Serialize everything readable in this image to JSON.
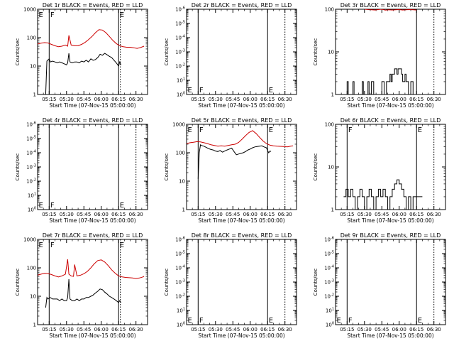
{
  "x_axis": {
    "start_minutes_after_0500": 5,
    "end_minutes_after_0500": 100,
    "ticks": [
      "05:15",
      "05:30",
      "05:45",
      "06:00",
      "06:15",
      "06:30"
    ],
    "tick_minutes": [
      15,
      30,
      45,
      60,
      75,
      90
    ],
    "label": "Start Time (07-Nov-15 05:00:00)"
  },
  "y_label": "Counts/sec",
  "series_colors": {
    "events": "#000000",
    "lld": "#cc0000"
  },
  "chart_data": [
    {
      "type": "line",
      "title": "Det 1r BLACK = Events, RED = LLD",
      "ylabel": "Counts/sec",
      "xlabel": "Start Time (07-Nov-15 05:00:00)",
      "yscale": "log",
      "ylim": [
        1,
        1000
      ],
      "yticks": [
        "1",
        "10",
        "100",
        "1000"
      ],
      "marks": [
        {
          "label": "E",
          "x": 5,
          "style": "solid",
          "pos": "top"
        },
        {
          "label": "F",
          "x": 15,
          "style": "solid",
          "pos": "top"
        },
        {
          "label": "E",
          "x": 75,
          "style": "solid",
          "pos": "top"
        },
        {
          "label": "",
          "x": 76.5,
          "style": "dotted",
          "pos": "top"
        }
      ],
      "series": [
        {
          "color": "#cc0000",
          "x": [
            5,
            8,
            11,
            14,
            17,
            20,
            23,
            26,
            29,
            31,
            32,
            34,
            37,
            40,
            43,
            46,
            49,
            52,
            55,
            58,
            61,
            64,
            67,
            70,
            73,
            76,
            79,
            82,
            85,
            88,
            91,
            94,
            97
          ],
          "y": [
            60,
            64,
            67,
            65,
            58,
            52,
            48,
            50,
            55,
            50,
            120,
            55,
            52,
            52,
            58,
            68,
            85,
            110,
            150,
            190,
            185,
            150,
            110,
            80,
            62,
            52,
            48,
            46,
            46,
            44,
            42,
            45,
            50
          ]
        },
        {
          "color": "#000000",
          "x": [
            12,
            13,
            15,
            16,
            18,
            20,
            22,
            24,
            26,
            28,
            30,
            31,
            32,
            33,
            35,
            37,
            39,
            41,
            43,
            45,
            47,
            49,
            51,
            53,
            55,
            57,
            59,
            61,
            63,
            65,
            67,
            69,
            71,
            73,
            75,
            76,
            77
          ],
          "y": [
            1,
            15,
            18,
            14,
            15,
            14,
            13,
            14,
            13,
            12,
            11,
            13,
            28,
            14,
            13,
            14,
            14,
            13,
            15,
            14,
            16,
            14,
            18,
            16,
            17,
            20,
            26,
            24,
            28,
            25,
            22,
            20,
            16,
            13,
            10,
            14,
            11
          ]
        }
      ]
    },
    {
      "type": "line",
      "title": "Det 2r BLACK = Events, RED = LLD",
      "ylabel": "Counts/sec",
      "xlabel": "Start Time (07-Nov-15 05:00:00)",
      "yscale": "log",
      "ylim": [
        1,
        1000000
      ],
      "yticks": [
        "10^0",
        "10^1",
        "10^-2",
        "10^-3",
        "10^-4",
        "10^-5",
        "10^-6"
      ],
      "marks": [
        {
          "label": "E",
          "x": 5,
          "style": "solid",
          "pos": "bottom"
        },
        {
          "label": "F",
          "x": 15,
          "style": "solid",
          "pos": "bottom"
        },
        {
          "label": "E",
          "x": 75,
          "style": "solid",
          "pos": "bottom"
        },
        {
          "label": "",
          "x": 90,
          "style": "dotted",
          "pos": "bottom"
        }
      ],
      "series": []
    },
    {
      "type": "line",
      "title": "Det 3r BLACK = Events, RED = LLD",
      "ylabel": "Counts/sec",
      "xlabel": "Start Time (07-Nov-15 05:00:00)",
      "yscale": "log",
      "ylim": [
        1,
        100
      ],
      "yticks": [
        "1",
        "10",
        "100"
      ],
      "marks": [
        {
          "label": "",
          "x": 5,
          "style": "solid",
          "pos": "top"
        },
        {
          "label": "",
          "x": 75,
          "style": "solid",
          "pos": "top"
        },
        {
          "label": "",
          "x": 90,
          "style": "dotted",
          "pos": "top"
        }
      ],
      "series": [
        {
          "color": "#cc0000",
          "x": [
            30,
            33,
            36,
            39,
            42,
            45,
            48,
            51,
            54,
            57,
            60,
            63,
            66,
            69,
            72,
            75
          ],
          "y": [
            100,
            98,
            97,
            96,
            98,
            100,
            95,
            97,
            96,
            97,
            98,
            96,
            97,
            98,
            97,
            96
          ]
        },
        {
          "color": "#000000",
          "x": [
            5,
            15,
            15,
            16,
            16,
            20,
            20,
            21,
            21,
            28,
            28,
            29,
            29,
            33,
            33,
            34,
            34,
            36,
            36,
            38,
            38,
            45,
            45,
            47,
            47,
            49,
            49,
            52,
            52,
            53,
            53,
            54,
            54,
            56,
            56,
            58,
            58,
            59,
            59,
            62,
            62,
            63,
            63,
            65,
            65,
            66,
            66,
            68,
            68,
            70,
            70,
            72,
            72,
            75,
            75,
            80
          ],
          "y": [
            1,
            1,
            2,
            2,
            1,
            1,
            2,
            2,
            1,
            1,
            2,
            2,
            1,
            1,
            2,
            2,
            1,
            1,
            2,
            2,
            1,
            1,
            2,
            2,
            1,
            1,
            2,
            2,
            3,
            3,
            2,
            2,
            3,
            3,
            4,
            4,
            3,
            3,
            4,
            4,
            3,
            3,
            2,
            2,
            3,
            3,
            2,
            2,
            1,
            1,
            2,
            2,
            1,
            1,
            1,
            1
          ]
        }
      ]
    },
    {
      "type": "line",
      "title": "Det 4r BLACK = Events, RED = LLD",
      "ylabel": "Counts/sec",
      "xlabel": "Start Time (07-Nov-15 05:00:00)",
      "yscale": "log",
      "ylim": [
        1,
        1000000
      ],
      "yticks": [
        "10^0",
        "10^1",
        "10^-2",
        "10^-3",
        "10^-4",
        "10^-5",
        "10^-6"
      ],
      "marks": [
        {
          "label": "E",
          "x": 5,
          "style": "solid",
          "pos": "bottom"
        },
        {
          "label": "F",
          "x": 15,
          "style": "solid",
          "pos": "bottom"
        },
        {
          "label": "E",
          "x": 75,
          "style": "solid",
          "pos": "bottom"
        },
        {
          "label": "",
          "x": 90,
          "style": "dotted",
          "pos": "bottom"
        }
      ],
      "series": []
    },
    {
      "type": "line",
      "title": "Det 5r BLACK = Events, RED = LLD",
      "ylabel": "Counts/sec",
      "xlabel": "Start Time (07-Nov-15 05:00:00)",
      "yscale": "log",
      "ylim": [
        1,
        1000
      ],
      "yticks": [
        "1",
        "10",
        "100",
        "1000"
      ],
      "marks": [
        {
          "label": "E",
          "x": 5,
          "style": "solid",
          "pos": "top"
        },
        {
          "label": "F",
          "x": 15,
          "style": "solid",
          "pos": "top"
        },
        {
          "label": "E",
          "x": 75,
          "style": "solid",
          "pos": "top"
        },
        {
          "label": "",
          "x": 90,
          "style": "dotted",
          "pos": "top"
        }
      ],
      "series": [
        {
          "color": "#cc0000",
          "x": [
            5,
            8,
            11,
            14,
            17,
            20,
            23,
            26,
            29,
            32,
            35,
            38,
            41,
            44,
            47,
            50,
            53,
            56,
            59,
            62,
            65,
            68,
            71,
            74,
            77,
            80,
            83,
            86,
            89,
            92,
            95,
            97
          ],
          "y": [
            210,
            225,
            235,
            245,
            240,
            225,
            210,
            190,
            180,
            170,
            175,
            170,
            180,
            190,
            200,
            230,
            300,
            400,
            520,
            600,
            480,
            350,
            260,
            210,
            185,
            175,
            170,
            168,
            165,
            160,
            170,
            175
          ]
        },
        {
          "color": "#000000",
          "x": [
            15,
            16,
            17,
            18,
            20,
            22,
            24,
            26,
            28,
            30,
            32,
            34,
            36,
            38,
            40,
            42,
            44,
            46,
            48,
            50,
            52,
            54,
            56,
            58,
            60,
            62,
            64,
            66,
            68,
            70,
            72,
            74,
            75,
            76,
            77,
            78
          ],
          "y": [
            12,
            100,
            190,
            180,
            170,
            155,
            140,
            130,
            125,
            115,
            110,
            120,
            105,
            115,
            125,
            135,
            145,
            110,
            85,
            90,
            95,
            100,
            110,
            125,
            135,
            150,
            160,
            165,
            170,
            175,
            160,
            150,
            120,
            100,
            115,
            110
          ]
        }
      ]
    },
    {
      "type": "line",
      "title": "Det 6r BLACK = Events, RED = LLD",
      "ylabel": "Counts/sec",
      "xlabel": "Start Time (07-Nov-15 05:00:00)",
      "yscale": "log",
      "ylim": [
        1,
        100
      ],
      "yticks": [
        "1",
        "10",
        "100"
      ],
      "marks": [
        {
          "label": "F",
          "x": 15,
          "style": "solid",
          "pos": "top"
        },
        {
          "label": "E",
          "x": 75,
          "style": "solid",
          "pos": "top"
        },
        {
          "label": "",
          "x": 90,
          "style": "dotted",
          "pos": "top"
        }
      ],
      "series": [
        {
          "color": "#000000",
          "x": [
            12,
            14,
            14,
            16,
            16,
            18,
            18,
            20,
            20,
            22,
            22,
            24,
            24,
            26,
            26,
            28,
            28,
            30,
            30,
            32,
            32,
            34,
            34,
            36,
            36,
            38,
            38,
            40,
            40,
            42,
            42,
            44,
            44,
            46,
            46,
            48,
            48,
            50,
            50,
            52,
            52,
            54,
            54,
            56,
            56,
            58,
            58,
            60,
            60,
            62,
            62,
            64,
            64,
            66,
            66,
            68,
            68,
            70,
            70,
            72,
            72,
            75,
            75,
            80
          ],
          "y": [
            2,
            2,
            3,
            3,
            2,
            2,
            3,
            3,
            2,
            2,
            1,
            1,
            2,
            2,
            3,
            3,
            2,
            2,
            1,
            1,
            2,
            2,
            3,
            3,
            2,
            2,
            1,
            1,
            2,
            2,
            3,
            3,
            2,
            2,
            3,
            3,
            2,
            2,
            1,
            1,
            2,
            2,
            3,
            3,
            4,
            4,
            5,
            5,
            4,
            4,
            3,
            3,
            2,
            2,
            1,
            1,
            2,
            2,
            1,
            1,
            2,
            2,
            2,
            2
          ]
        }
      ]
    },
    {
      "type": "line",
      "title": "Det 7r BLACK = Events, RED = LLD",
      "ylabel": "Counts/sec",
      "xlabel": "Start Time (07-Nov-15 05:00:00)",
      "yscale": "log",
      "ylim": [
        1,
        1000
      ],
      "yticks": [
        "1",
        "10",
        "100",
        "1000"
      ],
      "marks": [
        {
          "label": "E",
          "x": 5,
          "style": "solid",
          "pos": "top"
        },
        {
          "label": "F",
          "x": 15,
          "style": "solid",
          "pos": "top"
        },
        {
          "label": "E",
          "x": 75,
          "style": "solid",
          "pos": "top"
        },
        {
          "label": "",
          "x": 76.5,
          "style": "dotted",
          "pos": "top"
        }
      ],
      "series": [
        {
          "color": "#cc0000",
          "x": [
            5,
            8,
            11,
            14,
            17,
            20,
            23,
            26,
            29,
            31,
            32,
            34,
            36,
            37,
            39,
            42,
            45,
            48,
            51,
            54,
            57,
            60,
            63,
            66,
            69,
            72,
            75,
            78,
            81,
            84,
            87,
            90,
            93,
            96,
            97
          ],
          "y": [
            55,
            60,
            64,
            63,
            58,
            52,
            48,
            52,
            60,
            200,
            60,
            52,
            50,
            130,
            52,
            55,
            62,
            75,
            100,
            140,
            180,
            190,
            160,
            120,
            85,
            65,
            52,
            48,
            46,
            45,
            44,
            42,
            44,
            48,
            50
          ]
        },
        {
          "color": "#000000",
          "x": [
            12,
            13,
            14,
            16,
            18,
            20,
            22,
            24,
            26,
            28,
            30,
            31,
            32,
            33,
            35,
            37,
            39,
            41,
            43,
            45,
            47,
            49,
            51,
            53,
            55,
            57,
            59,
            61,
            63,
            65,
            67,
            69,
            71,
            73,
            75,
            76,
            77
          ],
          "y": [
            4,
            9,
            8,
            9,
            8,
            8,
            8,
            7,
            8,
            7,
            7,
            9,
            40,
            8,
            7,
            7,
            8,
            7,
            8,
            8,
            9,
            9,
            10,
            11,
            13,
            15,
            18,
            17,
            14,
            12,
            10,
            9,
            8,
            7,
            6,
            7,
            6
          ]
        }
      ]
    },
    {
      "type": "line",
      "title": "Det 8r BLACK = Events, RED = LLD",
      "ylabel": "Counts/sec",
      "xlabel": "Start Time (07-Nov-15 05:00:00)",
      "yscale": "log",
      "ylim": [
        1,
        1000000
      ],
      "yticks": [
        "10^0",
        "10^1",
        "10^-2",
        "10^-3",
        "10^-4",
        "10^-5",
        "10^-6"
      ],
      "marks": [
        {
          "label": "E",
          "x": 5,
          "style": "solid",
          "pos": "bottom"
        },
        {
          "label": "F",
          "x": 15,
          "style": "solid",
          "pos": "bottom"
        },
        {
          "label": "E",
          "x": 75,
          "style": "solid",
          "pos": "bottom"
        },
        {
          "label": "",
          "x": 90,
          "style": "dotted",
          "pos": "bottom"
        }
      ],
      "series": []
    },
    {
      "type": "line",
      "title": "Det 9r BLACK = Events, RED = LLD",
      "ylabel": "Counts/sec",
      "xlabel": "Start Time (07-Nov-15 05:00:00)",
      "yscale": "log",
      "ylim": [
        1,
        1000000
      ],
      "yticks": [
        "10^0",
        "10^1",
        "10^-2",
        "10^-3",
        "10^-4",
        "10^-5",
        "10^-6"
      ],
      "marks": [
        {
          "label": "E",
          "x": 5,
          "style": "solid",
          "pos": "bottom"
        },
        {
          "label": "F",
          "x": 15,
          "style": "solid",
          "pos": "bottom"
        },
        {
          "label": "E",
          "x": 75,
          "style": "solid",
          "pos": "bottom"
        },
        {
          "label": "",
          "x": 90,
          "style": "dotted",
          "pos": "bottom"
        }
      ],
      "series": []
    }
  ]
}
